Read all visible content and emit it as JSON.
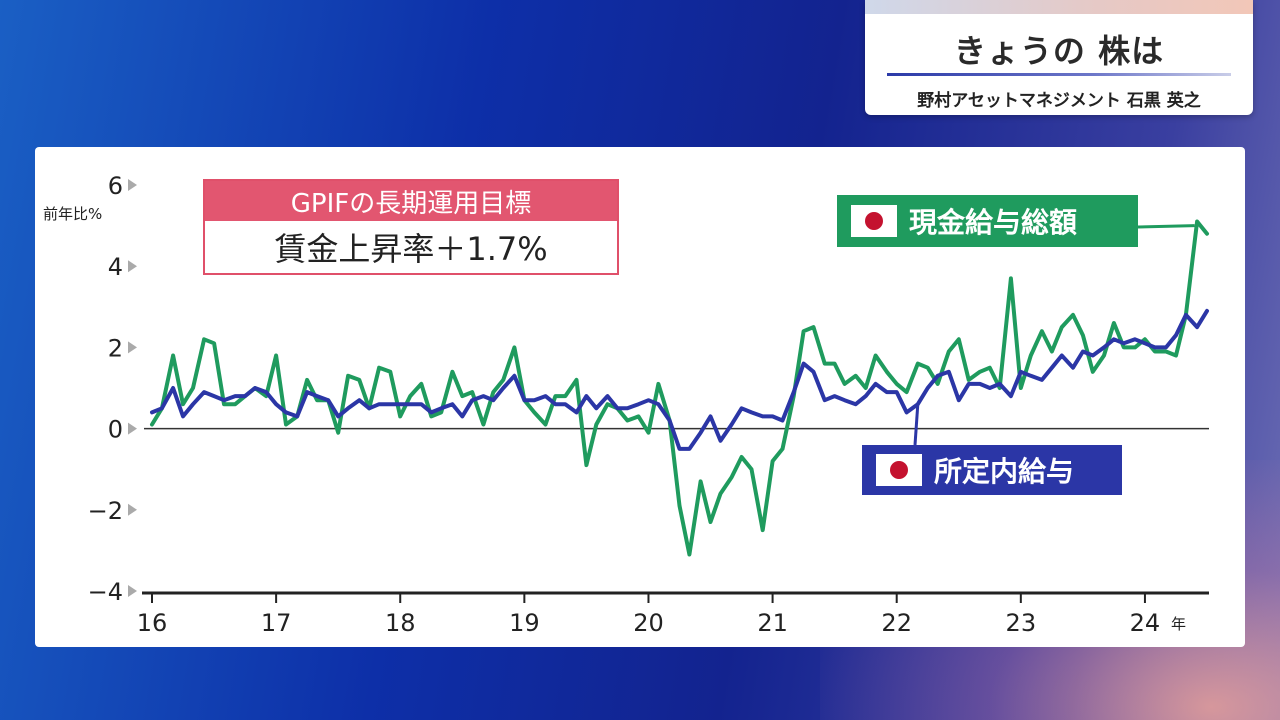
{
  "title_card": {
    "title": "きょうの 株は",
    "subtitle": "野村アセットマネジメント 石黒 英之"
  },
  "gpif_box": {
    "heading": "GPIFの長期運用目標",
    "value": "賃金上昇率＋1.7%"
  },
  "colors": {
    "green_series": "#1f9b5e",
    "blue_series": "#2b36a6",
    "gpif_accent": "#e25670"
  },
  "icons": {
    "legend_flag": "japan-flag-icon"
  },
  "chart_data": {
    "type": "line",
    "ylabel": "前年比%",
    "x_unit": "年",
    "ylim": [
      -4,
      6
    ],
    "yticks": [
      "6",
      "4",
      "2",
      "0",
      "−2",
      "−4"
    ],
    "ytick_values": [
      6,
      4,
      2,
      0,
      -2,
      -4
    ],
    "xticks": [
      "16",
      "17",
      "18",
      "19",
      "20",
      "21",
      "22",
      "23",
      "24"
    ],
    "xtick_values": [
      2016,
      2017,
      2018,
      2019,
      2020,
      2021,
      2022,
      2023,
      2024
    ],
    "xlim": [
      2016,
      2024.5
    ],
    "zero_line": true,
    "series": [
      {
        "name": "現金給与総額",
        "color": "#1f9b5e",
        "points": [
          [
            2016.0,
            0.1
          ],
          [
            2016.08,
            0.5
          ],
          [
            2016.17,
            1.8
          ],
          [
            2016.25,
            0.6
          ],
          [
            2016.33,
            1.0
          ],
          [
            2016.42,
            2.2
          ],
          [
            2016.5,
            2.1
          ],
          [
            2016.58,
            0.6
          ],
          [
            2016.67,
            0.6
          ],
          [
            2016.75,
            0.8
          ],
          [
            2016.83,
            1.0
          ],
          [
            2016.92,
            0.8
          ],
          [
            2017.0,
            1.8
          ],
          [
            2017.08,
            0.1
          ],
          [
            2017.17,
            0.3
          ],
          [
            2017.25,
            1.2
          ],
          [
            2017.33,
            0.7
          ],
          [
            2017.42,
            0.7
          ],
          [
            2017.5,
            -0.1
          ],
          [
            2017.58,
            1.3
          ],
          [
            2017.67,
            1.2
          ],
          [
            2017.75,
            0.5
          ],
          [
            2017.83,
            1.5
          ],
          [
            2017.92,
            1.4
          ],
          [
            2018.0,
            0.3
          ],
          [
            2018.08,
            0.8
          ],
          [
            2018.17,
            1.1
          ],
          [
            2018.25,
            0.3
          ],
          [
            2018.33,
            0.4
          ],
          [
            2018.42,
            1.4
          ],
          [
            2018.5,
            0.8
          ],
          [
            2018.58,
            0.9
          ],
          [
            2018.67,
            0.1
          ],
          [
            2018.75,
            0.9
          ],
          [
            2018.83,
            1.2
          ],
          [
            2018.92,
            2.0
          ],
          [
            2019.0,
            0.7
          ],
          [
            2019.08,
            0.4
          ],
          [
            2019.17,
            0.1
          ],
          [
            2019.25,
            0.8
          ],
          [
            2019.33,
            0.8
          ],
          [
            2019.42,
            1.2
          ],
          [
            2019.5,
            -0.9
          ],
          [
            2019.58,
            0.1
          ],
          [
            2019.67,
            0.6
          ],
          [
            2019.75,
            0.5
          ],
          [
            2019.83,
            0.2
          ],
          [
            2019.92,
            0.3
          ],
          [
            2020.0,
            -0.1
          ],
          [
            2020.08,
            1.1
          ],
          [
            2020.17,
            0.2
          ],
          [
            2020.25,
            -1.9
          ],
          [
            2020.33,
            -3.1
          ],
          [
            2020.42,
            -1.3
          ],
          [
            2020.5,
            -2.3
          ],
          [
            2020.58,
            -1.6
          ],
          [
            2020.67,
            -1.2
          ],
          [
            2020.75,
            -0.7
          ],
          [
            2020.83,
            -1.0
          ],
          [
            2020.92,
            -2.5
          ],
          [
            2021.0,
            -0.8
          ],
          [
            2021.08,
            -0.5
          ],
          [
            2021.17,
            0.8
          ],
          [
            2021.25,
            2.4
          ],
          [
            2021.33,
            2.5
          ],
          [
            2021.42,
            1.6
          ],
          [
            2021.5,
            1.6
          ],
          [
            2021.58,
            1.1
          ],
          [
            2021.67,
            1.3
          ],
          [
            2021.75,
            1.0
          ],
          [
            2021.83,
            1.8
          ],
          [
            2021.92,
            1.4
          ],
          [
            2022.0,
            1.1
          ],
          [
            2022.08,
            0.9
          ],
          [
            2022.17,
            1.6
          ],
          [
            2022.25,
            1.5
          ],
          [
            2022.33,
            1.1
          ],
          [
            2022.42,
            1.9
          ],
          [
            2022.5,
            2.2
          ],
          [
            2022.58,
            1.2
          ],
          [
            2022.67,
            1.4
          ],
          [
            2022.75,
            1.5
          ],
          [
            2022.83,
            1.0
          ],
          [
            2022.92,
            3.7
          ],
          [
            2023.0,
            1.0
          ],
          [
            2023.08,
            1.8
          ],
          [
            2023.17,
            2.4
          ],
          [
            2023.25,
            1.9
          ],
          [
            2023.33,
            2.5
          ],
          [
            2023.42,
            2.8
          ],
          [
            2023.5,
            2.3
          ],
          [
            2023.58,
            1.4
          ],
          [
            2023.67,
            1.8
          ],
          [
            2023.75,
            2.6
          ],
          [
            2023.83,
            2.0
          ],
          [
            2023.92,
            2.0
          ],
          [
            2024.0,
            2.2
          ],
          [
            2024.08,
            1.9
          ],
          [
            2024.17,
            1.9
          ],
          [
            2024.25,
            1.8
          ],
          [
            2024.33,
            2.8
          ],
          [
            2024.42,
            5.1
          ],
          [
            2024.5,
            4.8
          ]
        ]
      },
      {
        "name": "所定内給与",
        "color": "#2b36a6",
        "points": [
          [
            2016.0,
            0.4
          ],
          [
            2016.08,
            0.5
          ],
          [
            2016.17,
            1.0
          ],
          [
            2016.25,
            0.3
          ],
          [
            2016.33,
            0.6
          ],
          [
            2016.42,
            0.9
          ],
          [
            2016.5,
            0.8
          ],
          [
            2016.58,
            0.7
          ],
          [
            2016.67,
            0.8
          ],
          [
            2016.75,
            0.8
          ],
          [
            2016.83,
            1.0
          ],
          [
            2016.92,
            0.9
          ],
          [
            2017.0,
            0.6
          ],
          [
            2017.08,
            0.4
          ],
          [
            2017.17,
            0.3
          ],
          [
            2017.25,
            0.9
          ],
          [
            2017.33,
            0.8
          ],
          [
            2017.42,
            0.7
          ],
          [
            2017.5,
            0.3
          ],
          [
            2017.58,
            0.5
          ],
          [
            2017.67,
            0.7
          ],
          [
            2017.75,
            0.5
          ],
          [
            2017.83,
            0.6
          ],
          [
            2017.92,
            0.6
          ],
          [
            2018.0,
            0.6
          ],
          [
            2018.08,
            0.6
          ],
          [
            2018.17,
            0.6
          ],
          [
            2018.25,
            0.4
          ],
          [
            2018.33,
            0.5
          ],
          [
            2018.42,
            0.6
          ],
          [
            2018.5,
            0.3
          ],
          [
            2018.58,
            0.7
          ],
          [
            2018.67,
            0.8
          ],
          [
            2018.75,
            0.7
          ],
          [
            2018.83,
            1.0
          ],
          [
            2018.92,
            1.3
          ],
          [
            2019.0,
            0.7
          ],
          [
            2019.08,
            0.7
          ],
          [
            2019.17,
            0.8
          ],
          [
            2019.25,
            0.6
          ],
          [
            2019.33,
            0.6
          ],
          [
            2019.42,
            0.4
          ],
          [
            2019.5,
            0.8
          ],
          [
            2019.58,
            0.5
          ],
          [
            2019.67,
            0.8
          ],
          [
            2019.75,
            0.5
          ],
          [
            2019.83,
            0.5
          ],
          [
            2019.92,
            0.6
          ],
          [
            2020.0,
            0.7
          ],
          [
            2020.08,
            0.6
          ],
          [
            2020.17,
            0.2
          ],
          [
            2020.25,
            -0.5
          ],
          [
            2020.33,
            -0.5
          ],
          [
            2020.42,
            -0.1
          ],
          [
            2020.5,
            0.3
          ],
          [
            2020.58,
            -0.3
          ],
          [
            2020.67,
            0.1
          ],
          [
            2020.75,
            0.5
          ],
          [
            2020.83,
            0.4
          ],
          [
            2020.92,
            0.3
          ],
          [
            2021.0,
            0.3
          ],
          [
            2021.08,
            0.2
          ],
          [
            2021.17,
            0.9
          ],
          [
            2021.25,
            1.6
          ],
          [
            2021.33,
            1.4
          ],
          [
            2021.42,
            0.7
          ],
          [
            2021.5,
            0.8
          ],
          [
            2021.58,
            0.7
          ],
          [
            2021.67,
            0.6
          ],
          [
            2021.75,
            0.8
          ],
          [
            2021.83,
            1.1
          ],
          [
            2021.92,
            0.9
          ],
          [
            2022.0,
            0.9
          ],
          [
            2022.08,
            0.4
          ],
          [
            2022.17,
            0.6
          ],
          [
            2022.25,
            1.0
          ],
          [
            2022.33,
            1.3
          ],
          [
            2022.42,
            1.4
          ],
          [
            2022.5,
            0.7
          ],
          [
            2022.58,
            1.1
          ],
          [
            2022.67,
            1.1
          ],
          [
            2022.75,
            1.0
          ],
          [
            2022.83,
            1.1
          ],
          [
            2022.92,
            0.8
          ],
          [
            2023.0,
            1.4
          ],
          [
            2023.08,
            1.3
          ],
          [
            2023.17,
            1.2
          ],
          [
            2023.25,
            1.5
          ],
          [
            2023.33,
            1.8
          ],
          [
            2023.42,
            1.5
          ],
          [
            2023.5,
            1.9
          ],
          [
            2023.58,
            1.8
          ],
          [
            2023.67,
            2.0
          ],
          [
            2023.75,
            2.2
          ],
          [
            2023.83,
            2.1
          ],
          [
            2023.92,
            2.2
          ],
          [
            2024.0,
            2.1
          ],
          [
            2024.08,
            2.0
          ],
          [
            2024.17,
            2.0
          ],
          [
            2024.25,
            2.3
          ],
          [
            2024.33,
            2.8
          ],
          [
            2024.42,
            2.5
          ],
          [
            2024.5,
            2.9
          ]
        ]
      }
    ]
  }
}
